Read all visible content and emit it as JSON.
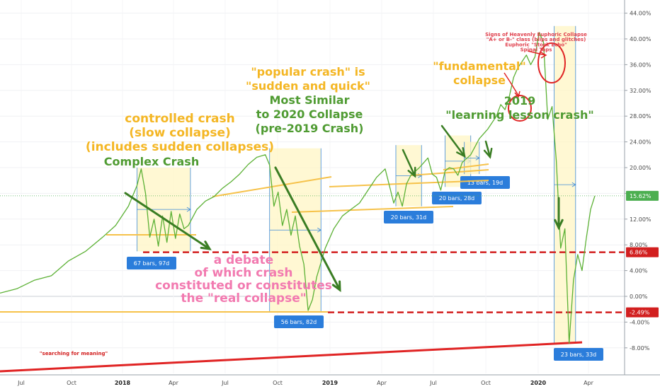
{
  "chart_data": {
    "type": "line",
    "title": "",
    "xlabel": "",
    "ylabel": "",
    "ylim": [
      -11,
      46
    ],
    "x_ticks": [
      {
        "label": "Jul",
        "bold": false
      },
      {
        "label": "Oct",
        "bold": false
      },
      {
        "label": "2018",
        "bold": true
      },
      {
        "label": "Apr",
        "bold": false
      },
      {
        "label": "Jul",
        "bold": false
      },
      {
        "label": "Oct",
        "bold": false
      },
      {
        "label": "2019",
        "bold": true
      },
      {
        "label": "Apr",
        "bold": false
      },
      {
        "label": "Jul",
        "bold": false
      },
      {
        "label": "Oct",
        "bold": false
      },
      {
        "label": "2020",
        "bold": true
      },
      {
        "label": "Apr",
        "bold": false
      }
    ],
    "y_ticks": [
      "44.00%",
      "40.00%",
      "36.00%",
      "32.00%",
      "28.00%",
      "24.00%",
      "20.00%",
      "16.00%",
      "12.00%",
      "8.00%",
      "4.00%",
      "0.00%",
      "-4.00%",
      "-8.00%"
    ],
    "y_tick_values": [
      44,
      40,
      36,
      32,
      28,
      24,
      20,
      16,
      12,
      8,
      4,
      0,
      -4,
      -8
    ],
    "series": [
      {
        "color": "#5cb135",
        "points": [
          [
            0,
            0.5
          ],
          [
            4,
            1.2
          ],
          [
            8,
            2.5
          ],
          [
            12,
            3.2
          ],
          [
            16,
            5.5
          ],
          [
            20,
            7.0
          ],
          [
            24,
            9.2
          ],
          [
            27,
            11.0
          ],
          [
            30,
            14.0
          ],
          [
            32,
            17.2
          ],
          [
            33,
            19.8
          ],
          [
            34,
            16.0
          ],
          [
            35,
            9.2
          ],
          [
            36,
            12.0
          ],
          [
            37,
            7.8
          ],
          [
            38,
            12.5
          ],
          [
            39,
            8.4
          ],
          [
            40,
            13.2
          ],
          [
            41,
            9.0
          ],
          [
            42,
            12.8
          ],
          [
            43,
            10.5
          ],
          [
            44,
            11.0
          ],
          [
            46,
            13.5
          ],
          [
            48,
            14.8
          ],
          [
            50,
            15.5
          ],
          [
            52,
            16.8
          ],
          [
            54,
            17.8
          ],
          [
            56,
            19.0
          ],
          [
            58,
            20.5
          ],
          [
            60,
            21.6
          ],
          [
            62,
            22.0
          ],
          [
            63,
            20.4
          ],
          [
            64,
            14.0
          ],
          [
            65,
            16.2
          ],
          [
            66,
            11.0
          ],
          [
            67,
            13.5
          ],
          [
            68,
            9.5
          ],
          [
            69,
            12.5
          ],
          [
            70,
            7.8
          ],
          [
            71,
            5.0
          ],
          [
            72,
            -2.2
          ],
          [
            73,
            -0.5
          ],
          [
            74,
            3.0
          ],
          [
            76,
            7.5
          ],
          [
            78,
            10.5
          ],
          [
            80,
            12.5
          ],
          [
            82,
            13.5
          ],
          [
            84,
            14.5
          ],
          [
            86,
            16.5
          ],
          [
            88,
            18.5
          ],
          [
            90,
            19.8
          ],
          [
            91,
            17.2
          ],
          [
            92,
            14.5
          ],
          [
            93,
            16.2
          ],
          [
            94,
            14.0
          ],
          [
            95,
            17.5
          ],
          [
            96,
            18.8
          ],
          [
            98,
            20.0
          ],
          [
            100,
            21.5
          ],
          [
            101,
            19.0
          ],
          [
            102,
            18.5
          ],
          [
            103,
            16.5
          ],
          [
            104,
            19.5
          ],
          [
            105,
            20.0
          ],
          [
            106,
            19.8
          ],
          [
            107,
            18.8
          ],
          [
            108,
            20.8
          ],
          [
            110,
            22.0
          ],
          [
            112,
            24.5
          ],
          [
            114,
            26.0
          ],
          [
            116,
            28.0
          ],
          [
            117,
            29.8
          ],
          [
            118,
            29.0
          ],
          [
            119,
            31.0
          ],
          [
            120,
            34.0
          ],
          [
            121,
            35.5
          ],
          [
            122,
            36.5
          ],
          [
            123,
            37.5
          ],
          [
            124,
            36.0
          ],
          [
            125,
            37.2
          ],
          [
            126,
            41.0
          ],
          [
            127,
            39.5
          ],
          [
            128,
            27.5
          ],
          [
            129,
            29.5
          ],
          [
            130,
            21.0
          ],
          [
            131,
            7.5
          ],
          [
            132,
            10.5
          ],
          [
            133,
            -7.3
          ],
          [
            134,
            2.5
          ],
          [
            135,
            6.5
          ],
          [
            136,
            4.0
          ],
          [
            137,
            9.0
          ],
          [
            138,
            13.5
          ],
          [
            139,
            15.62
          ]
        ]
      }
    ],
    "price_tags": [
      {
        "label": "15.62%",
        "value": 15.62,
        "color": "#4caf50"
      },
      {
        "label": "6.86%",
        "value": 6.86,
        "color": "#d21f1f"
      },
      {
        "label": "-2.49%",
        "value": -2.49,
        "color": "#d21f1f"
      }
    ],
    "range_boxes": [
      {
        "label": "67 bars, 97d",
        "x0": 32,
        "x1": 44.5,
        "top": 20.0,
        "bottom": 7.0
      },
      {
        "label": "56 bars, 82d",
        "x0": 63,
        "x1": 75,
        "top": 23.0,
        "bottom": -2.4
      },
      {
        "label": "20 bars, 31d",
        "x0": 92.5,
        "x1": 98.5,
        "top": 23.5,
        "bottom": 14.0
      },
      {
        "label": "20 bars, 28d",
        "x0": 104,
        "x1": 110,
        "top": 25.0,
        "bottom": 17.0
      },
      {
        "label": "13 bars, 19d",
        "x0": 108.5,
        "x1": 112,
        "top": 24.0,
        "bottom": 19.0
      },
      {
        "label": "23 bars, 33d",
        "x0": 129.5,
        "x1": 134.5,
        "top": 42.0,
        "bottom": -7.3
      }
    ],
    "annotations": [
      {
        "lines": [
          "controlled crash",
          "(slow collapse)",
          "(includes sudden collapses)"
        ],
        "color": "#f4b623"
      },
      {
        "lines": [
          "Complex Crash"
        ],
        "color": "#4f9b32"
      },
      {
        "lines": [
          "\"popular crash\" is",
          "\"sudden and quick\""
        ],
        "color": "#f4b623"
      },
      {
        "lines": [
          "Most Similar",
          "to 2020 Collapse",
          "(pre-2019 Crash)"
        ],
        "color": "#4f9b32"
      },
      {
        "lines": [
          "\"fundamental\"",
          "collapse"
        ],
        "color": "#f4b623"
      },
      {
        "lines": [
          "2019",
          "\"learning lesson crash\""
        ],
        "color": "#4f9b32"
      },
      {
        "lines": [
          "a debate",
          "of which crash",
          "constituted or constitutes",
          "the \"real collapse\""
        ],
        "color": "#f27ab0"
      },
      {
        "lines": [
          "Signs of Heavenly Euphoric Collapse",
          "\"A+ or B-\" class (blips and glitches)",
          "Euphoric \"Stock Echo\"",
          "Spinal Taps"
        ],
        "color": "#e0414e"
      },
      {
        "lines": [
          "\"searching for meaning\""
        ],
        "color": "#d21f1f"
      }
    ]
  }
}
